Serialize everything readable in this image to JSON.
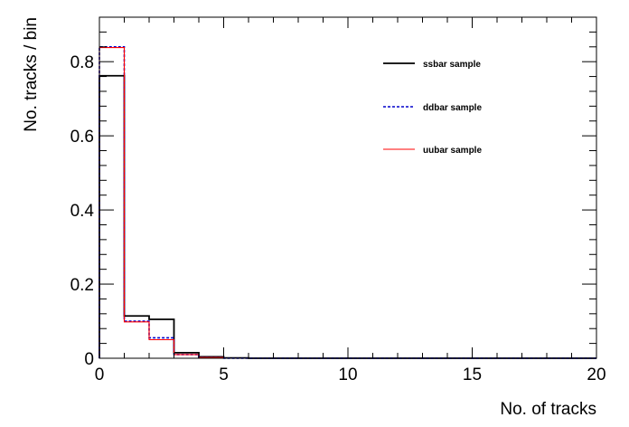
{
  "chart_data": {
    "type": "line",
    "subtype": "step-histogram",
    "xlabel": "No. of tracks",
    "ylabel": "No. tracks / bin",
    "xlim": [
      0,
      20
    ],
    "ylim": [
      0,
      0.92
    ],
    "x_ticks": [
      0,
      5,
      10,
      15,
      20
    ],
    "y_ticks": [
      0,
      0.2,
      0.4,
      0.6,
      0.8
    ],
    "x_tick_labels": [
      "0",
      "5",
      "10",
      "15",
      "20"
    ],
    "y_tick_labels": [
      "0",
      "0.2",
      "0.4",
      "0.6",
      "0.8"
    ],
    "grid": false,
    "legend_position": "top-right",
    "bin_edges": [
      0,
      1,
      2,
      3,
      4,
      5,
      6,
      7,
      8,
      9,
      10,
      11,
      12,
      13,
      14,
      15,
      16,
      17,
      18,
      19,
      20
    ],
    "series": [
      {
        "name": "ssbar sample",
        "color": "#000000",
        "style": "solid",
        "values": [
          0.762,
          0.114,
          0.105,
          0.015,
          0.004,
          0.001,
          0,
          0,
          0,
          0,
          0,
          0,
          0,
          0,
          0,
          0,
          0,
          0,
          0,
          0
        ]
      },
      {
        "name": "ddbar sample",
        "color": "#0000cc",
        "style": "dashed",
        "values": [
          0.84,
          0.1,
          0.055,
          0.01,
          0.002,
          0,
          0,
          0,
          0,
          0,
          0,
          0,
          0,
          0,
          0,
          0,
          0,
          0,
          0,
          0
        ]
      },
      {
        "name": "uubar sample",
        "color": "#ff0000",
        "style": "solid",
        "values": [
          0.838,
          0.098,
          0.05,
          0.01,
          0.002,
          0,
          0,
          0,
          0,
          0,
          0,
          0,
          0,
          0,
          0,
          0,
          0,
          0,
          0,
          0
        ]
      }
    ]
  }
}
